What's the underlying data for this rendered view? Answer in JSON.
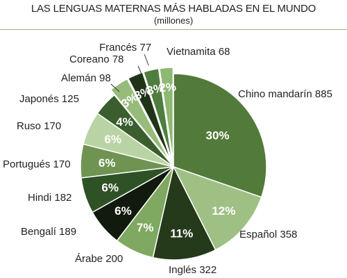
{
  "chart_data": {
    "type": "pie",
    "title": "LAS LENGUAS MATERNAS MÁS HABLADAS EN EL MUNDO",
    "subtitle": "(millones)",
    "slices": [
      {
        "label": "Chino mandarín 885",
        "value": 885,
        "pct_label": "30%",
        "color": "#527a3a"
      },
      {
        "label": "Español 358",
        "value": 358,
        "pct_label": "12%",
        "color": "#9fc084"
      },
      {
        "label": "Inglés 322",
        "value": 322,
        "pct_label": "11%",
        "color": "#253a1b"
      },
      {
        "label": "Árabe 200",
        "value": 200,
        "pct_label": "7%",
        "color": "#7fa860"
      },
      {
        "label": "Bengalí 189",
        "value": 189,
        "pct_label": "6%",
        "color": "#121a0e"
      },
      {
        "label": "Hindi 182",
        "value": 182,
        "pct_label": "6%",
        "color": "#2e5226"
      },
      {
        "label": "Portugués 170",
        "value": 170,
        "pct_label": "6%",
        "color": "#6f9452"
      },
      {
        "label": "Ruso 170",
        "value": 170,
        "pct_label": "6%",
        "color": "#bad3a4"
      },
      {
        "label": "Japonés 125",
        "value": 125,
        "pct_label": "4%",
        "color": "#3a5e2e"
      },
      {
        "label": "Alemán 98",
        "value": 98,
        "pct_label": "3%",
        "color": "#97bb79"
      },
      {
        "label": "Coreano 78",
        "value": 78,
        "pct_label": "3%",
        "color": "#1f3318"
      },
      {
        "label": "Francés 77",
        "value": 77,
        "pct_label": "3%",
        "color": "#4f7d3f"
      },
      {
        "label": "Vietnamita 68",
        "value": 68,
        "pct_label": "2%",
        "color": "#8fb873"
      }
    ]
  }
}
